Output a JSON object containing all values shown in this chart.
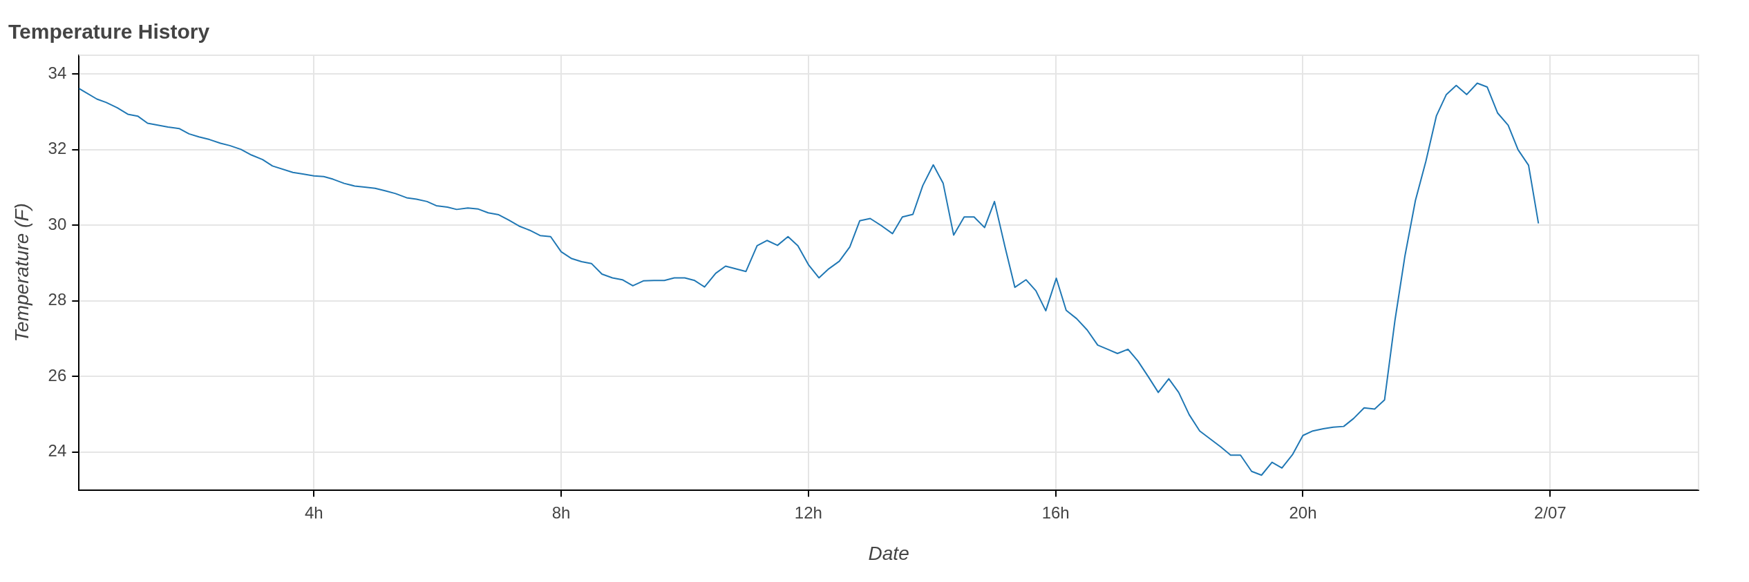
{
  "chart_data": {
    "type": "line",
    "title": "Temperature History",
    "xlabel": "Date",
    "ylabel": "Temperature (F)",
    "marker": "none",
    "grid": true,
    "x": [
      0.2,
      0.49,
      0.64,
      0.82,
      0.99,
      1.15,
      1.31,
      1.64,
      1.82,
      1.98,
      2.14,
      2.31,
      2.49,
      2.64,
      2.82,
      2.99,
      3.17,
      3.33,
      3.66,
      3.82,
      4.0,
      4.16,
      4.31,
      4.49,
      4.66,
      4.82,
      4.99,
      5.16,
      5.32,
      5.5,
      5.66,
      5.83,
      5.98,
      6.16,
      6.31,
      6.49,
      6.66,
      6.82,
      6.99,
      7.15,
      7.32,
      7.49,
      7.66,
      7.83,
      8.0,
      8.17,
      8.33,
      8.49,
      8.66,
      8.83,
      8.99,
      9.16,
      9.33,
      9.5,
      9.67,
      9.83,
      10.0,
      10.16,
      10.32,
      10.5,
      10.66,
      10.99,
      11.17,
      11.33,
      11.5,
      11.67,
      11.83,
      12.0,
      12.17,
      12.33,
      12.5,
      12.67,
      12.83,
      13.0,
      13.19,
      13.36,
      13.52,
      13.69,
      13.85,
      14.02,
      14.18,
      14.35,
      14.52,
      14.68,
      14.85,
      15.01,
      15.18,
      15.34,
      15.52,
      15.68,
      15.84,
      16.01,
      16.17,
      16.34,
      16.51,
      16.68,
      16.84,
      17.0,
      17.17,
      17.33,
      17.5,
      17.66,
      17.83,
      17.99,
      18.16,
      18.33,
      18.67,
      18.83,
      18.99,
      19.17,
      19.33,
      19.5,
      19.66,
      19.83,
      20.0,
      20.16,
      20.33,
      20.49,
      20.66,
      20.82,
      20.99,
      21.16,
      21.32,
      21.49,
      21.65,
      21.82,
      21.99,
      22.16,
      22.32,
      22.48,
      22.65,
      22.82,
      22.98,
      23.15,
      23.32,
      23.48,
      23.65,
      23.81
    ],
    "series": [
      {
        "color": "#1f77b4",
        "values": [
          33.62,
          33.34,
          33.25,
          33.11,
          32.94,
          32.89,
          32.7,
          32.6,
          32.56,
          32.42,
          32.34,
          32.27,
          32.17,
          32.11,
          32.01,
          31.86,
          31.74,
          31.57,
          31.4,
          31.36,
          31.31,
          31.29,
          31.22,
          31.11,
          31.04,
          31.01,
          30.98,
          30.91,
          30.84,
          30.73,
          30.69,
          30.63,
          30.52,
          30.48,
          30.42,
          30.46,
          30.43,
          30.33,
          30.28,
          30.14,
          29.98,
          29.87,
          29.73,
          29.7,
          29.3,
          29.12,
          29.04,
          28.99,
          28.71,
          28.61,
          28.56,
          28.4,
          28.53,
          28.54,
          28.54,
          28.61,
          28.61,
          28.54,
          28.37,
          28.73,
          28.92,
          28.78,
          29.46,
          29.6,
          29.47,
          29.7,
          29.46,
          28.96,
          28.61,
          28.85,
          29.05,
          29.43,
          30.12,
          30.18,
          29.98,
          29.78,
          30.22,
          30.29,
          31.05,
          31.6,
          31.11,
          29.74,
          30.22,
          30.22,
          29.94,
          30.63,
          29.43,
          28.36,
          28.56,
          28.27,
          27.74,
          28.6,
          27.75,
          27.53,
          27.23,
          26.83,
          26.72,
          26.61,
          26.72,
          26.41,
          25.99,
          25.58,
          25.94,
          25.58,
          24.99,
          24.56,
          24.14,
          23.92,
          23.92,
          23.49,
          23.39,
          23.73,
          23.58,
          23.93,
          24.44,
          24.56,
          24.62,
          24.66,
          24.68,
          24.89,
          25.17,
          25.14,
          25.38,
          27.5,
          29.19,
          30.66,
          31.7,
          32.9,
          33.46,
          33.7,
          33.46,
          33.76,
          33.66,
          32.97,
          32.65,
          32.0,
          31.59,
          30.05
        ]
      }
    ],
    "xlim": [
      0.2,
      26.4
    ],
    "xticks": [
      {
        "value": 4,
        "label": "4h"
      },
      {
        "value": 8,
        "label": "8h"
      },
      {
        "value": 12,
        "label": "12h"
      },
      {
        "value": 16,
        "label": "16h"
      },
      {
        "value": 20,
        "label": "20h"
      },
      {
        "value": 24,
        "label": "2/07"
      }
    ],
    "ylim": [
      23,
      34.5
    ],
    "yticks": [
      24,
      26,
      28,
      30,
      32,
      34
    ]
  }
}
